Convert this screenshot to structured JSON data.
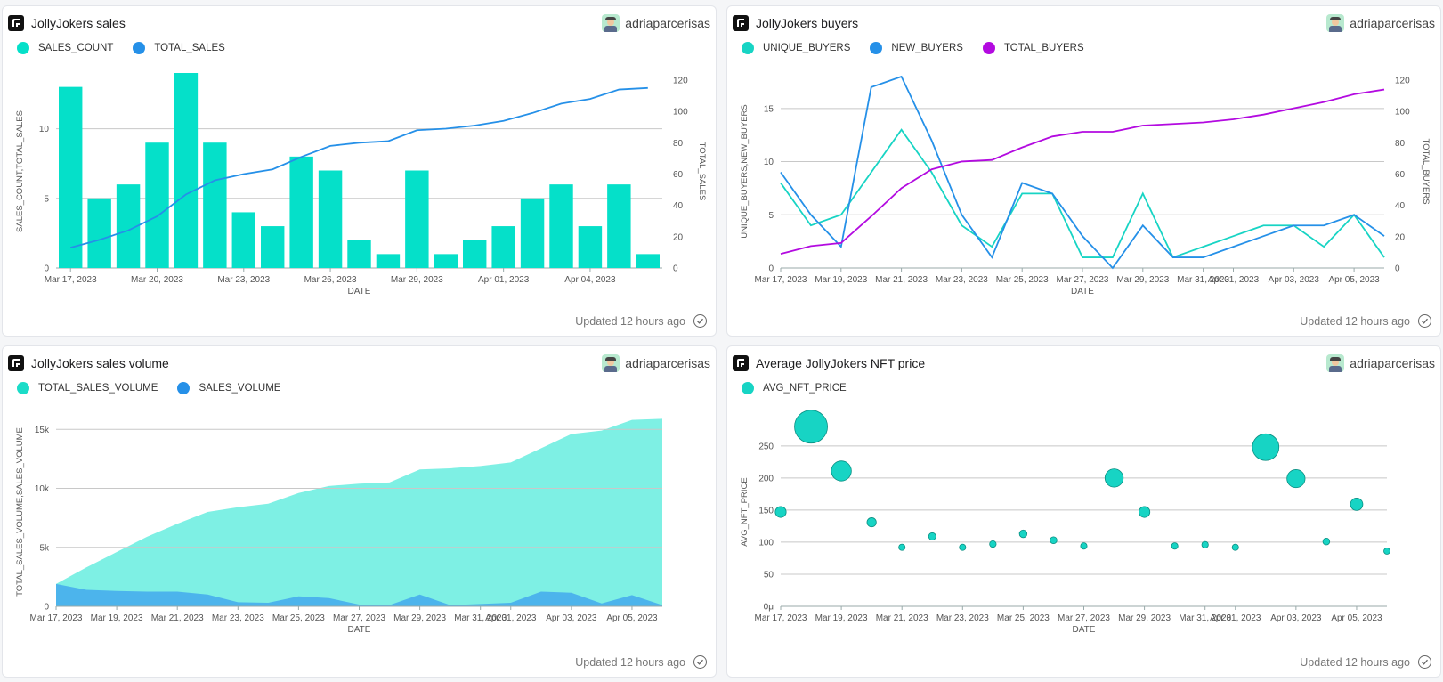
{
  "panels": [
    {
      "title": "JollyJokers sales",
      "user": "adriaparcerisas",
      "updated": "Updated 12 hours ago",
      "legend": [
        {
          "label": "SALES_COUNT",
          "color": "#05e0c9"
        },
        {
          "label": "TOTAL_SALES",
          "color": "#2590e8"
        }
      ]
    },
    {
      "title": "JollyJokers buyers",
      "user": "adriaparcerisas",
      "updated": "Updated 12 hours ago",
      "legend": [
        {
          "label": "UNIQUE_BUYERS",
          "color": "#17d4c4"
        },
        {
          "label": "NEW_BUYERS",
          "color": "#2590e8"
        },
        {
          "label": "TOTAL_BUYERS",
          "color": "#b30ae0"
        }
      ]
    },
    {
      "title": "JollyJokers sales volume",
      "user": "adriaparcerisas",
      "updated": "Updated 12 hours ago",
      "legend": [
        {
          "label": "TOTAL_SALES_VOLUME",
          "color": "#1bdcc8"
        },
        {
          "label": "SALES_VOLUME",
          "color": "#2590e8"
        }
      ]
    },
    {
      "title": "Average JollyJokers NFT price",
      "user": "adriaparcerisas",
      "updated": "Updated 12 hours ago",
      "legend": [
        {
          "label": "AVG_NFT_PRICE",
          "color": "#17d4c4"
        }
      ]
    }
  ],
  "chart_data": [
    {
      "type": "bar",
      "title": "JollyJokers sales",
      "xlabel": "DATE",
      "ylabel": "SALES_COUNT,TOTAL_SALES",
      "y2label": "TOTAL_SALES",
      "x": [
        "2023-03-17",
        "2023-03-18",
        "2023-03-19",
        "2023-03-20",
        "2023-03-21",
        "2023-03-22",
        "2023-03-23",
        "2023-03-24",
        "2023-03-25",
        "2023-03-26",
        "2023-03-27",
        "2023-03-28",
        "2023-03-29",
        "2023-03-30",
        "2023-03-31",
        "2023-04-01",
        "2023-04-02",
        "2023-04-03",
        "2023-04-04",
        "2023-04-05",
        "2023-04-06"
      ],
      "xticks": [
        "Mar 17, 2023",
        "Mar 20, 2023",
        "Mar 23, 2023",
        "Mar 26, 2023",
        "Mar 29, 2023",
        "Apr 01, 2023",
        "Apr 04, 2023"
      ],
      "ylim": [
        0,
        14
      ],
      "yticks": [
        0,
        5,
        10
      ],
      "y2lim": [
        0,
        120
      ],
      "y2ticks": [
        0,
        20,
        40,
        60,
        80,
        100,
        120
      ],
      "series": [
        {
          "name": "SALES_COUNT",
          "type": "bar",
          "axis": "left",
          "color": "#05e0c9",
          "values": [
            13,
            5,
            6,
            9,
            14,
            9,
            4,
            3,
            8,
            7,
            2,
            1,
            7,
            1,
            2,
            3,
            5,
            6,
            3,
            6,
            1
          ]
        },
        {
          "name": "TOTAL_SALES",
          "type": "line",
          "axis": "right",
          "color": "#2590e8",
          "values": [
            13,
            18,
            24,
            33,
            47,
            56,
            60,
            63,
            71,
            78,
            80,
            81,
            88,
            89,
            91,
            94,
            99,
            105,
            108,
            114,
            115
          ]
        }
      ]
    },
    {
      "type": "line",
      "title": "JollyJokers buyers",
      "xlabel": "DATE",
      "ylabel": "UNIQUE_BUYERS,NEW_BUYERS",
      "y2label": "TOTAL_BUYERS",
      "x": [
        "2023-03-17",
        "2023-03-18",
        "2023-03-19",
        "2023-03-20",
        "2023-03-21",
        "2023-03-22",
        "2023-03-23",
        "2023-03-24",
        "2023-03-25",
        "2023-03-26",
        "2023-03-27",
        "2023-03-28",
        "2023-03-29",
        "2023-03-30",
        "2023-03-31",
        "2023-04-01",
        "2023-04-02",
        "2023-04-03",
        "2023-04-04",
        "2023-04-05",
        "2023-04-06"
      ],
      "xticks": [
        "Mar 17, 2023",
        "Mar 19, 2023",
        "Mar 21, 2023",
        "Mar 23, 2023",
        "Mar 25, 2023",
        "Mar 27, 2023",
        "Mar 29, 2023",
        "Mar 31, 2023",
        "Apr 01, 2023",
        "Apr 03, 2023",
        "Apr 05, 2023"
      ],
      "ylim": [
        0,
        18
      ],
      "yticks": [
        0,
        5,
        10,
        15
      ],
      "y2lim": [
        0,
        120
      ],
      "y2ticks": [
        0,
        20,
        40,
        60,
        80,
        100,
        120
      ],
      "series": [
        {
          "name": "UNIQUE_BUYERS",
          "axis": "left",
          "color": "#17d4c4",
          "values": [
            8,
            4,
            5,
            9,
            13,
            9,
            4,
            2,
            7,
            7,
            1,
            1,
            7,
            1,
            2,
            3,
            4,
            4,
            2,
            5,
            1
          ]
        },
        {
          "name": "NEW_BUYERS",
          "axis": "left",
          "color": "#2590e8",
          "values": [
            9,
            5,
            2,
            17,
            18,
            12,
            5,
            1,
            8,
            7,
            3,
            0,
            4,
            1,
            1,
            2,
            3,
            4,
            4,
            5,
            3
          ]
        },
        {
          "name": "TOTAL_BUYERS",
          "axis": "right",
          "color": "#b30ae0",
          "values": [
            9,
            14,
            16,
            33,
            51,
            63,
            68,
            69,
            77,
            84,
            87,
            87,
            91,
            92,
            93,
            95,
            98,
            102,
            106,
            111,
            114
          ]
        }
      ]
    },
    {
      "type": "area",
      "title": "JollyJokers sales volume",
      "xlabel": "DATE",
      "ylabel": "TOTAL_SALES_VOLUME,SALES_VOLUME",
      "x": [
        "2023-03-17",
        "2023-03-18",
        "2023-03-19",
        "2023-03-20",
        "2023-03-21",
        "2023-03-22",
        "2023-03-23",
        "2023-03-24",
        "2023-03-25",
        "2023-03-26",
        "2023-03-27",
        "2023-03-28",
        "2023-03-29",
        "2023-03-30",
        "2023-03-31",
        "2023-04-01",
        "2023-04-02",
        "2023-04-03",
        "2023-04-04",
        "2023-04-05",
        "2023-04-06"
      ],
      "xticks": [
        "Mar 17, 2023",
        "Mar 19, 2023",
        "Mar 21, 2023",
        "Mar 23, 2023",
        "Mar 25, 2023",
        "Mar 27, 2023",
        "Mar 29, 2023",
        "Mar 31, 2023",
        "Apr 01, 2023",
        "Apr 03, 2023",
        "Apr 05, 2023"
      ],
      "ylim": [
        0,
        16000
      ],
      "yticks": [
        0,
        5000,
        10000,
        15000
      ],
      "yticklabels": [
        "0",
        "5k",
        "10k",
        "15k"
      ],
      "series": [
        {
          "name": "TOTAL_SALES_VOLUME",
          "color": "#7ef0e4",
          "values": [
            1900,
            3300,
            4600,
            5900,
            7000,
            8000,
            8400,
            8700,
            9600,
            10200,
            10400,
            10500,
            11600,
            11700,
            11900,
            12200,
            13400,
            14600,
            14900,
            15800,
            15900
          ]
        },
        {
          "name": "SALES_VOLUME",
          "color": "#4cb4ec",
          "values": [
            1900,
            1400,
            1300,
            1250,
            1250,
            1000,
            350,
            300,
            850,
            700,
            150,
            100,
            1000,
            100,
            200,
            300,
            1250,
            1150,
            250,
            950,
            100
          ]
        }
      ]
    },
    {
      "type": "scatter",
      "title": "Average JollyJokers NFT price",
      "xlabel": "DATE",
      "ylabel": "AVG_NFT_PRICE",
      "x": [
        "2023-03-17",
        "2023-03-18",
        "2023-03-19",
        "2023-03-20",
        "2023-03-21",
        "2023-03-22",
        "2023-03-23",
        "2023-03-24",
        "2023-03-25",
        "2023-03-26",
        "2023-03-27",
        "2023-03-28",
        "2023-03-29",
        "2023-03-30",
        "2023-03-31",
        "2023-04-01",
        "2023-04-02",
        "2023-04-03",
        "2023-04-04",
        "2023-04-05",
        "2023-04-06"
      ],
      "xticks": [
        "Mar 17, 2023",
        "Mar 19, 2023",
        "Mar 21, 2023",
        "Mar 23, 2023",
        "Mar 25, 2023",
        "Mar 27, 2023",
        "Mar 29, 2023",
        "Mar 31, 2023",
        "Apr 01, 2023",
        "Apr 03, 2023",
        "Apr 05, 2023"
      ],
      "ylim": [
        0,
        290
      ],
      "yticks": [
        0,
        50,
        100,
        150,
        200,
        250
      ],
      "yticklabels": [
        "0μ",
        "50",
        "100",
        "150",
        "200",
        "250"
      ],
      "series": [
        {
          "name": "AVG_NFT_PRICE",
          "color": "#17d4c4",
          "values": [
            147,
            280,
            211,
            131,
            92,
            109,
            92,
            97,
            113,
            103,
            94,
            200,
            147,
            94,
            96,
            92,
            248,
            199,
            101,
            159,
            86
          ]
        }
      ]
    }
  ]
}
